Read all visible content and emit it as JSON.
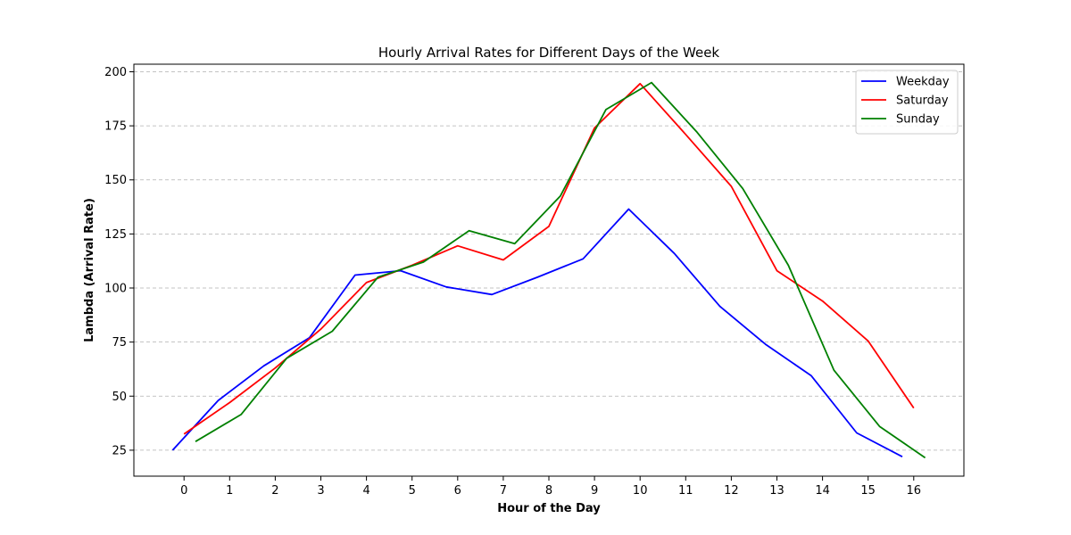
{
  "chart_data": {
    "type": "line",
    "title": "Hourly Arrival Rates for Different Days of the Week",
    "xlabel": "Hour of the Day",
    "ylabel": "Lambda (Arrival Rate)",
    "xlim": [
      -1.1,
      17.1
    ],
    "ylim": [
      13,
      203.5
    ],
    "x_ticks": [
      0,
      1,
      2,
      3,
      4,
      5,
      6,
      7,
      8,
      9,
      10,
      11,
      12,
      13,
      14,
      15,
      16
    ],
    "y_ticks": [
      25,
      50,
      75,
      100,
      125,
      150,
      175,
      200
    ],
    "grid": "y-dashed",
    "legend_position": "top-right",
    "series": [
      {
        "name": "Weekday",
        "color": "#0000ff",
        "x": [
          -0.25,
          0.75,
          1.75,
          2.75,
          3.75,
          4.75,
          5.75,
          6.75,
          7.75,
          8.75,
          9.75,
          10.75,
          11.75,
          12.75,
          13.75,
          14.75,
          15.75
        ],
        "y": [
          25,
          48,
          64,
          77,
          106,
          108,
          100.5,
          97,
          105,
          113.5,
          136.5,
          116,
          91.5,
          74,
          59.5,
          33,
          22
        ]
      },
      {
        "name": "Saturday",
        "color": "#ff0000",
        "x": [
          0,
          1,
          2,
          3,
          4,
          5,
          6,
          7,
          8,
          9,
          10,
          11,
          12,
          13,
          14,
          15,
          16
        ],
        "y": [
          32.5,
          47,
          63,
          81,
          102.5,
          110.5,
          119.5,
          113,
          128.5,
          174,
          194.5,
          171,
          147,
          108,
          94,
          75.5,
          44.5
        ]
      },
      {
        "name": "Sunday",
        "color": "#008000",
        "x": [
          0.25,
          1.25,
          2.25,
          3.25,
          4.25,
          5.25,
          6.25,
          7.25,
          8.25,
          9.25,
          10.25,
          11.25,
          12.25,
          13.25,
          14.25,
          15.25,
          16.25
        ],
        "y": [
          29,
          41.5,
          67.5,
          80,
          105,
          112,
          126.5,
          120.5,
          142.5,
          182.5,
          195,
          172,
          146,
          110.5,
          62,
          36,
          21.5
        ]
      }
    ]
  }
}
